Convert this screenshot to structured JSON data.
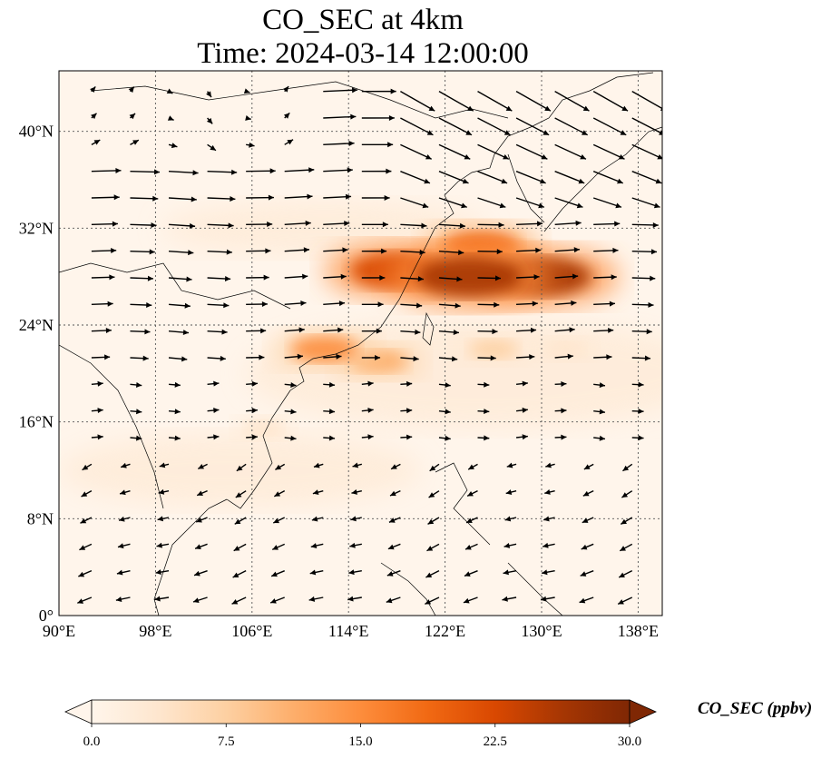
{
  "title_line1": "CO_SEC at 4km",
  "title_line2": "Time: 2024-03-14 12:00:00",
  "colorbar": {
    "label": "CO_SEC (ppbv)",
    "ticks": [
      "0.0",
      "7.5",
      "15.0",
      "22.5",
      "30.0"
    ],
    "min": 0,
    "max": 30,
    "colormap": [
      "#fff5eb",
      "#fee6ce",
      "#fdd0a2",
      "#fdae6b",
      "#fd8d3c",
      "#f16913",
      "#d94801",
      "#a63603",
      "#7f2704"
    ]
  },
  "chart_data": {
    "type": "heatmap",
    "title": "CO_SEC at 4km\nTime: 2024-03-14 12:00:00",
    "variable": "CO_SEC",
    "units": "ppbv",
    "xlim": [
      90,
      140
    ],
    "ylim": [
      0,
      45
    ],
    "x_ticks": [
      "90°E",
      "98°E",
      "106°E",
      "114°E",
      "122°E",
      "130°E",
      "138°E"
    ],
    "y_ticks": [
      "0°",
      "8°N",
      "16°N",
      "24°N",
      "32°N",
      "40°N"
    ],
    "grid": true,
    "overlay": "wind vectors (mostly westerly flow)",
    "plumes": [
      {
        "lon": 124,
        "lat": 28,
        "value": 28
      },
      {
        "lon": 130,
        "lat": 28,
        "value": 26
      },
      {
        "lon": 118,
        "lat": 28.5,
        "value": 24
      },
      {
        "lon": 125,
        "lat": 30.5,
        "value": 18
      },
      {
        "lon": 112,
        "lat": 22,
        "value": 15
      },
      {
        "lon": 116.5,
        "lat": 21,
        "value": 12
      },
      {
        "lon": 126,
        "lat": 22,
        "value": 9
      },
      {
        "lon": 107,
        "lat": 15.5,
        "value": 5
      },
      {
        "lon": 132,
        "lat": 22,
        "value": 5
      }
    ]
  }
}
